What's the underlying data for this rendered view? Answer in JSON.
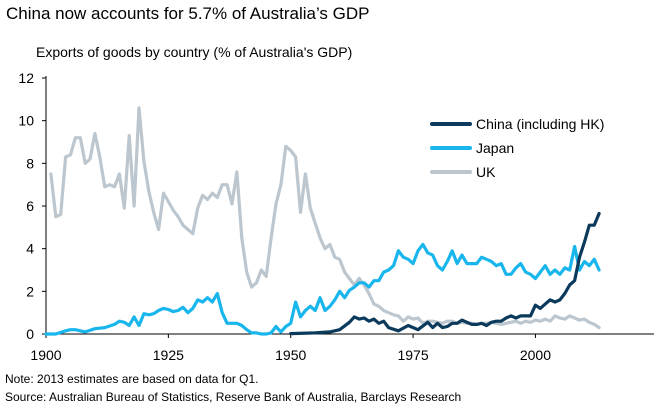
{
  "title": "China now accounts for 5.7% of Australia’s GDP",
  "note": "Note: 2013 estimates are based on data for Q1.",
  "source": "Source: Australian Bureau of Statistics, Reserve Bank of Australia, Barclays Research",
  "chart_data": {
    "type": "line",
    "title": "China now accounts for 5.7% of Australia’s GDP",
    "subtitle": "Exports of goods by country (% of Australia's GDP)",
    "xlabel": "",
    "ylabel": "",
    "xlim": [
      1900,
      2023
    ],
    "ylim": [
      0,
      12
    ],
    "x_ticks": [
      1900,
      1925,
      1950,
      1975,
      2000
    ],
    "y_ticks": [
      0,
      2,
      4,
      6,
      8,
      10,
      12
    ],
    "legend_position": "top-right",
    "grid": false,
    "series": [
      {
        "name": "China (including HK)",
        "color": "#0b3a5c",
        "x": [
          1950,
          1955,
          1958,
          1960,
          1962,
          1963,
          1964,
          1965,
          1966,
          1967,
          1968,
          1969,
          1970,
          1972,
          1974,
          1976,
          1978,
          1979,
          1980,
          1981,
          1982,
          1983,
          1984,
          1985,
          1986,
          1987,
          1988,
          1989,
          1990,
          1991,
          1992,
          1993,
          1994,
          1995,
          1996,
          1997,
          1998,
          1999,
          2000,
          2001,
          2002,
          2003,
          2004,
          2005,
          2006,
          2007,
          2008,
          2009,
          2010,
          2011,
          2012,
          2013
        ],
        "values": [
          0.02,
          0.05,
          0.1,
          0.2,
          0.55,
          0.8,
          0.7,
          0.75,
          0.6,
          0.7,
          0.5,
          0.6,
          0.3,
          0.15,
          0.4,
          0.2,
          0.55,
          0.3,
          0.5,
          0.3,
          0.35,
          0.5,
          0.5,
          0.65,
          0.55,
          0.45,
          0.45,
          0.5,
          0.4,
          0.55,
          0.6,
          0.6,
          0.75,
          0.85,
          0.75,
          0.85,
          0.85,
          0.85,
          1.35,
          1.2,
          1.4,
          1.6,
          1.5,
          1.6,
          1.9,
          2.3,
          2.5,
          3.6,
          4.3,
          5.1,
          5.1,
          5.65
        ]
      },
      {
        "name": "Japan",
        "color": "#18b6ec",
        "x": [
          1900,
          1902,
          1904,
          1905,
          1906,
          1908,
          1910,
          1912,
          1914,
          1915,
          1916,
          1917,
          1918,
          1919,
          1920,
          1921,
          1922,
          1923,
          1924,
          1925,
          1926,
          1927,
          1928,
          1929,
          1930,
          1931,
          1932,
          1933,
          1934,
          1935,
          1936,
          1937,
          1938,
          1939,
          1940,
          1941,
          1942,
          1943,
          1944,
          1945,
          1946,
          1947,
          1948,
          1949,
          1950,
          1951,
          1952,
          1953,
          1954,
          1955,
          1956,
          1957,
          1958,
          1959,
          1960,
          1961,
          1962,
          1963,
          1964,
          1965,
          1966,
          1967,
          1968,
          1969,
          1970,
          1971,
          1972,
          1973,
          1974,
          1975,
          1976,
          1977,
          1978,
          1979,
          1980,
          1981,
          1982,
          1983,
          1984,
          1985,
          1986,
          1987,
          1988,
          1989,
          1990,
          1991,
          1992,
          1993,
          1994,
          1995,
          1996,
          1997,
          1998,
          1999,
          2000,
          2001,
          2002,
          2003,
          2004,
          2005,
          2006,
          2007,
          2008,
          2009,
          2010,
          2011,
          2012,
          2013
        ],
        "values": [
          0,
          0,
          0.15,
          0.2,
          0.2,
          0.1,
          0.25,
          0.3,
          0.45,
          0.6,
          0.55,
          0.4,
          0.8,
          0.4,
          0.95,
          0.9,
          0.95,
          1.1,
          1.2,
          1.15,
          1.05,
          1.1,
          1.25,
          1.0,
          1.2,
          1.6,
          1.5,
          1.7,
          1.5,
          1.9,
          1.0,
          0.5,
          0.5,
          0.5,
          0.4,
          0.2,
          0.05,
          0.05,
          0,
          0,
          0.05,
          0.35,
          0.1,
          0.35,
          0.5,
          1.5,
          0.8,
          1.1,
          1.3,
          1.1,
          1.7,
          1.1,
          1.3,
          1.6,
          2.0,
          1.7,
          2.05,
          2.2,
          2.4,
          2.4,
          2.2,
          2.5,
          2.5,
          2.9,
          3.0,
          3.2,
          3.9,
          3.6,
          3.5,
          3.3,
          3.9,
          4.2,
          3.8,
          3.7,
          3.2,
          3.0,
          3.4,
          3.9,
          3.3,
          3.7,
          3.3,
          3.3,
          3.3,
          3.6,
          3.5,
          3.4,
          3.2,
          3.3,
          2.8,
          2.8,
          3.1,
          3.3,
          2.9,
          2.8,
          2.6,
          2.9,
          3.2,
          2.8,
          3.0,
          2.8,
          3.1,
          3.0,
          4.1,
          3.0,
          3.4,
          3.2,
          3.5,
          3.0
        ]
      },
      {
        "name": "UK",
        "color": "#bcc6ce",
        "x": [
          1901,
          1902,
          1903,
          1904,
          1905,
          1906,
          1907,
          1908,
          1909,
          1910,
          1911,
          1912,
          1913,
          1914,
          1915,
          1916,
          1917,
          1918,
          1919,
          1920,
          1921,
          1922,
          1923,
          1924,
          1925,
          1926,
          1927,
          1928,
          1929,
          1930,
          1931,
          1932,
          1933,
          1934,
          1935,
          1936,
          1937,
          1938,
          1939,
          1940,
          1941,
          1942,
          1943,
          1944,
          1945,
          1946,
          1947,
          1948,
          1949,
          1950,
          1951,
          1952,
          1953,
          1954,
          1955,
          1956,
          1957,
          1958,
          1959,
          1960,
          1961,
          1962,
          1963,
          1964,
          1965,
          1966,
          1967,
          1968,
          1969,
          1970,
          1971,
          1972,
          1973,
          1974,
          1975,
          1976,
          1977,
          1978,
          1979,
          1980,
          1981,
          1982,
          1983,
          1984,
          1985,
          1986,
          1987,
          1988,
          1989,
          1990,
          1991,
          1992,
          1993,
          1994,
          1995,
          1996,
          1997,
          1998,
          1999,
          2000,
          2001,
          2002,
          2003,
          2004,
          2005,
          2006,
          2007,
          2008,
          2009,
          2010,
          2011,
          2012,
          2013
        ],
        "values": [
          7.5,
          5.5,
          5.6,
          8.3,
          8.4,
          9.2,
          9.2,
          8.0,
          8.2,
          9.4,
          8.3,
          6.9,
          7.0,
          6.9,
          7.5,
          5.9,
          9.3,
          6.0,
          10.6,
          8.1,
          6.7,
          5.7,
          4.9,
          6.6,
          6.2,
          5.8,
          5.5,
          5.1,
          4.9,
          4.7,
          5.9,
          6.5,
          6.3,
          6.6,
          6.4,
          7.0,
          7.0,
          6.1,
          7.6,
          4.5,
          2.9,
          2.2,
          2.4,
          3.0,
          2.7,
          4.5,
          6.1,
          7.0,
          8.8,
          8.6,
          8.3,
          5.7,
          7.5,
          5.9,
          5.2,
          4.5,
          4.0,
          4.2,
          3.6,
          3.5,
          2.9,
          2.6,
          2.3,
          2.6,
          2.3,
          1.9,
          1.4,
          1.3,
          1.1,
          1.0,
          0.9,
          0.85,
          0.6,
          0.8,
          0.7,
          0.75,
          0.5,
          0.6,
          0.6,
          0.55,
          0.5,
          0.6,
          0.6,
          0.5,
          0.55,
          0.5,
          0.5,
          0.45,
          0.5,
          0.5,
          0.55,
          0.5,
          0.45,
          0.5,
          0.55,
          0.6,
          0.5,
          0.6,
          0.55,
          0.65,
          0.6,
          0.7,
          0.6,
          0.85,
          0.75,
          0.7,
          0.85,
          0.75,
          0.65,
          0.7,
          0.55,
          0.45,
          0.3
        ]
      }
    ]
  }
}
